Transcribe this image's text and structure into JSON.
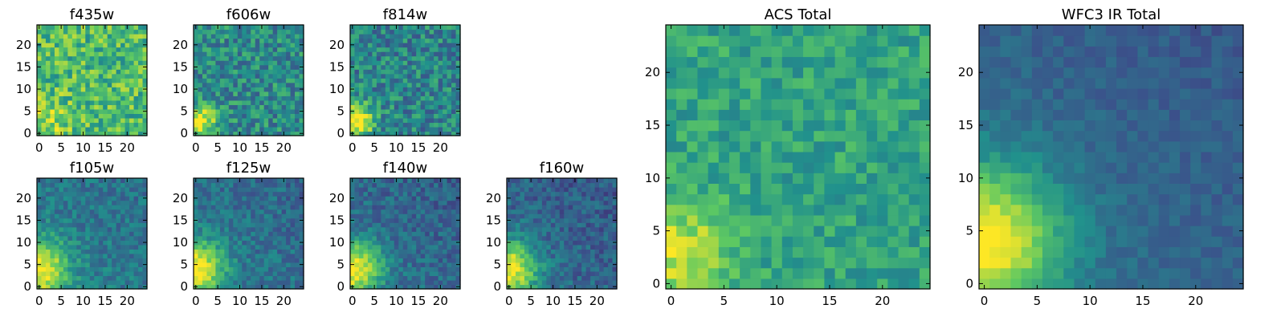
{
  "figure": {
    "colormap": "viridis",
    "colors": [
      "#440154",
      "#3b528b",
      "#21918c",
      "#5ec962",
      "#fde725"
    ]
  },
  "chart_data": [
    {
      "type": "heatmap",
      "title": "f435w",
      "grid_size": 25,
      "xlim": [
        0,
        24
      ],
      "ylim": [
        0,
        24
      ],
      "xticks": [
        0,
        5,
        10,
        15,
        20
      ],
      "yticks": [
        0,
        5,
        10,
        15,
        20
      ],
      "source_x": 2,
      "source_y": 3,
      "source_strength": 0.18,
      "source_width": 3.5,
      "background": 0.68,
      "background_gradient": 0.0,
      "noise": 0.22,
      "seed": 11
    },
    {
      "type": "heatmap",
      "title": "f606w",
      "grid_size": 25,
      "xlim": [
        0,
        24
      ],
      "ylim": [
        0,
        24
      ],
      "xticks": [
        0,
        5,
        10,
        15,
        20
      ],
      "yticks": [
        0,
        5,
        10,
        15,
        20
      ],
      "source_x": 1,
      "source_y": 3,
      "source_strength": 0.55,
      "source_width": 2.5,
      "background": 0.48,
      "background_gradient": 0.0,
      "noise": 0.2,
      "seed": 23
    },
    {
      "type": "heatmap",
      "title": "f814w",
      "grid_size": 25,
      "xlim": [
        0,
        24
      ],
      "ylim": [
        0,
        24
      ],
      "xticks": [
        0,
        5,
        10,
        15,
        20
      ],
      "yticks": [
        0,
        5,
        10,
        15,
        20
      ],
      "source_x": 1,
      "source_y": 3,
      "source_strength": 0.6,
      "source_width": 2.8,
      "background": 0.45,
      "background_gradient": 0.0,
      "noise": 0.2,
      "seed": 37
    },
    {
      "type": "heatmap",
      "title": "f105w",
      "grid_size": 25,
      "xlim": [
        0,
        24
      ],
      "ylim": [
        0,
        24
      ],
      "xticks": [
        0,
        5,
        10,
        15,
        20
      ],
      "yticks": [
        0,
        5,
        10,
        15,
        20
      ],
      "source_x": 0,
      "source_y": 4,
      "source_strength": 0.6,
      "source_width": 4.5,
      "background": 0.36,
      "background_gradient": 0.08,
      "noise": 0.12,
      "seed": 41
    },
    {
      "type": "heatmap",
      "title": "f125w",
      "grid_size": 25,
      "xlim": [
        0,
        24
      ],
      "ylim": [
        0,
        24
      ],
      "xticks": [
        0,
        5,
        10,
        15,
        20
      ],
      "yticks": [
        0,
        5,
        10,
        15,
        20
      ],
      "source_x": 0,
      "source_y": 4,
      "source_strength": 0.62,
      "source_width": 4.5,
      "background": 0.33,
      "background_gradient": 0.08,
      "noise": 0.12,
      "seed": 53
    },
    {
      "type": "heatmap",
      "title": "f140w",
      "grid_size": 25,
      "xlim": [
        0,
        24
      ],
      "ylim": [
        0,
        24
      ],
      "xticks": [
        0,
        5,
        10,
        15,
        20
      ],
      "yticks": [
        0,
        5,
        10,
        15,
        20
      ],
      "source_x": 0,
      "source_y": 4,
      "source_strength": 0.65,
      "source_width": 4.5,
      "background": 0.3,
      "background_gradient": 0.08,
      "noise": 0.12,
      "seed": 67
    },
    {
      "type": "heatmap",
      "title": "f160w",
      "grid_size": 25,
      "xlim": [
        0,
        24
      ],
      "ylim": [
        0,
        24
      ],
      "xticks": [
        0,
        5,
        10,
        15,
        20
      ],
      "yticks": [
        0,
        5,
        10,
        15,
        20
      ],
      "source_x": 0,
      "source_y": 4,
      "source_strength": 0.65,
      "source_width": 4.5,
      "background": 0.28,
      "background_gradient": 0.08,
      "noise": 0.12,
      "seed": 71
    },
    {
      "type": "heatmap",
      "title": "ACS Total",
      "grid_size": 25,
      "xlim": [
        0,
        24
      ],
      "ylim": [
        0,
        24
      ],
      "xticks": [
        0,
        5,
        10,
        15,
        20
      ],
      "yticks": [
        0,
        5,
        10,
        15,
        20
      ],
      "source_x": 1,
      "source_y": 3,
      "source_strength": 0.35,
      "source_width": 3.2,
      "background": 0.58,
      "background_gradient": 0.0,
      "noise": 0.13,
      "seed": 83
    },
    {
      "type": "heatmap",
      "title": "WFC3 IR Total",
      "grid_size": 25,
      "xlim": [
        0,
        24
      ],
      "ylim": [
        0,
        24
      ],
      "xticks": [
        0,
        5,
        10,
        15,
        20
      ],
      "yticks": [
        0,
        5,
        10,
        15,
        20
      ],
      "source_x": 0,
      "source_y": 4,
      "source_strength": 0.68,
      "source_width": 5.0,
      "background": 0.27,
      "background_gradient": 0.1,
      "noise": 0.06,
      "seed": 97
    }
  ]
}
